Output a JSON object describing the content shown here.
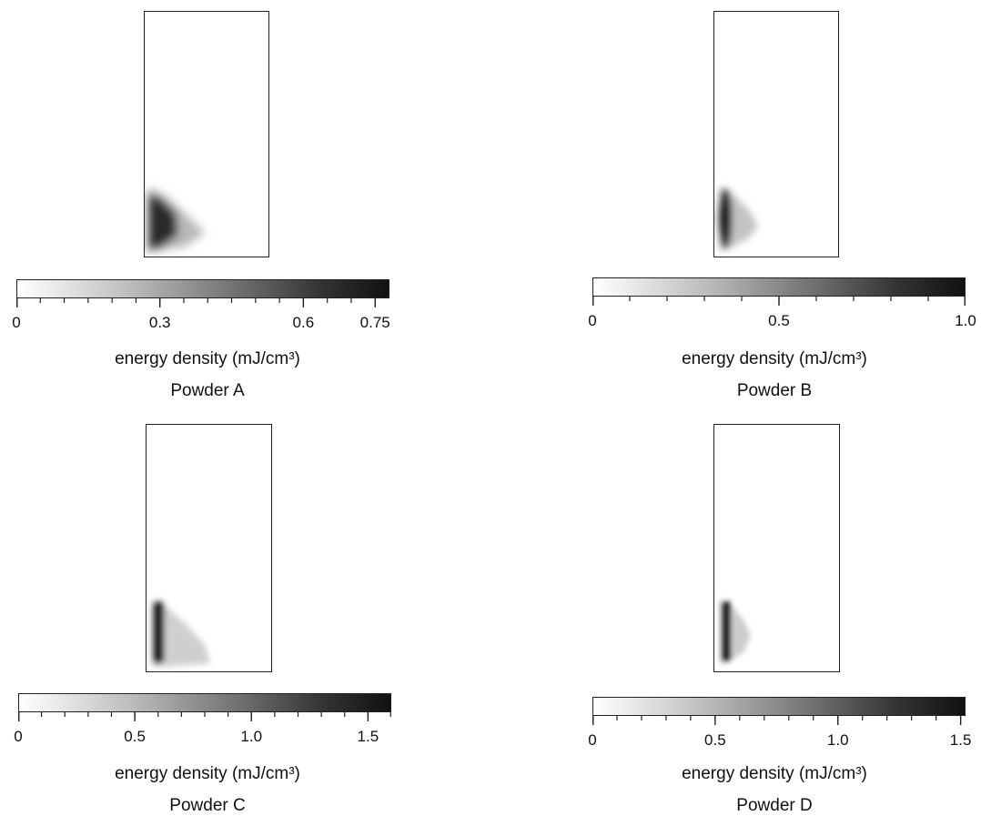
{
  "chart_data": [
    {
      "type": "heatmap",
      "title": "Powder A",
      "colorbar": {
        "label": "energy density (mJ/cm³)",
        "range": [
          0,
          0.78
        ],
        "major_ticks": [
          0,
          0.3,
          0.6,
          0.75
        ],
        "tick_labels": [
          "0",
          "0.3",
          "0.6",
          "0.75"
        ],
        "minor_step": 0.05,
        "colormap": "gray_r"
      },
      "hotspot": {
        "location": "lower-left",
        "peak": 0.75
      }
    },
    {
      "type": "heatmap",
      "title": "Powder B",
      "colorbar": {
        "label": "energy density (mJ/cm³)",
        "range": [
          0,
          1.0
        ],
        "major_ticks": [
          0,
          0.5,
          1.0
        ],
        "tick_labels": [
          "0",
          "0.5",
          "1.0"
        ],
        "minor_step": 0.1,
        "colormap": "gray_r"
      },
      "hotspot": {
        "location": "lower-left",
        "peak": 1.0
      }
    },
    {
      "type": "heatmap",
      "title": "Powder C",
      "colorbar": {
        "label": "energy density (mJ/cm³)",
        "range": [
          0,
          1.6
        ],
        "major_ticks": [
          0,
          0.5,
          1.0,
          1.5
        ],
        "tick_labels": [
          "0",
          "0.5",
          "1.0",
          "1.5"
        ],
        "minor_step": 0.1,
        "colormap": "gray_r"
      },
      "hotspot": {
        "location": "lower-left",
        "peak": 1.5
      }
    },
    {
      "type": "heatmap",
      "title": "Powder D",
      "colorbar": {
        "label": "energy density (mJ/cm³)",
        "range": [
          0,
          1.52
        ],
        "major_ticks": [
          0,
          0.5,
          1.0,
          1.5
        ],
        "tick_labels": [
          "0",
          "0.5",
          "1.0",
          "1.5"
        ],
        "minor_step": 0.1,
        "colormap": "gray_r"
      },
      "hotspot": {
        "location": "lower-left",
        "peak": 1.5
      }
    }
  ]
}
